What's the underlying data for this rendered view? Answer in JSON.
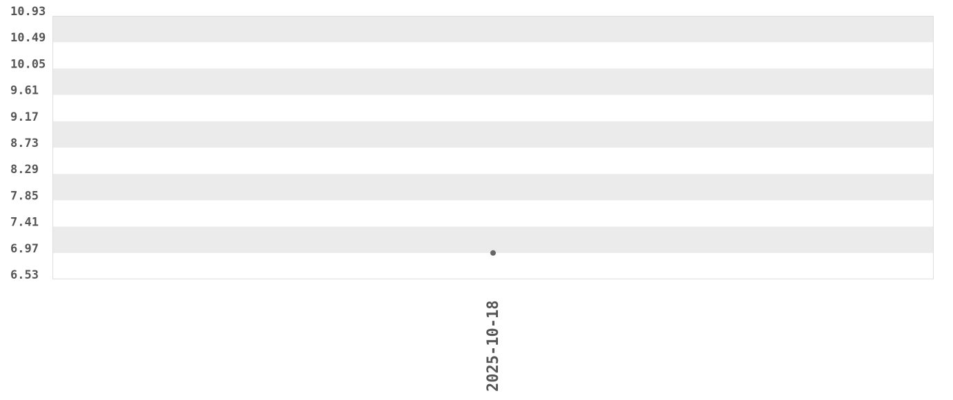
{
  "chart_data": {
    "type": "scatter",
    "title": "",
    "xlabel": "",
    "ylabel": "",
    "x_categories": [
      "2025-10-18"
    ],
    "points": [
      {
        "x": "2025-10-18",
        "y": 6.97
      }
    ],
    "ylim": [
      6.53,
      10.93
    ],
    "yticks": [
      "10.93",
      "10.49",
      "10.05",
      "9.61",
      "9.17",
      "8.73",
      "8.29",
      "7.85",
      "7.41",
      "6.97",
      "6.53"
    ],
    "grid": "alternating horizontal bands",
    "colors": {
      "band": "#ebebeb",
      "point": "#666666",
      "text": "#555555",
      "border": "#dddddd"
    }
  }
}
